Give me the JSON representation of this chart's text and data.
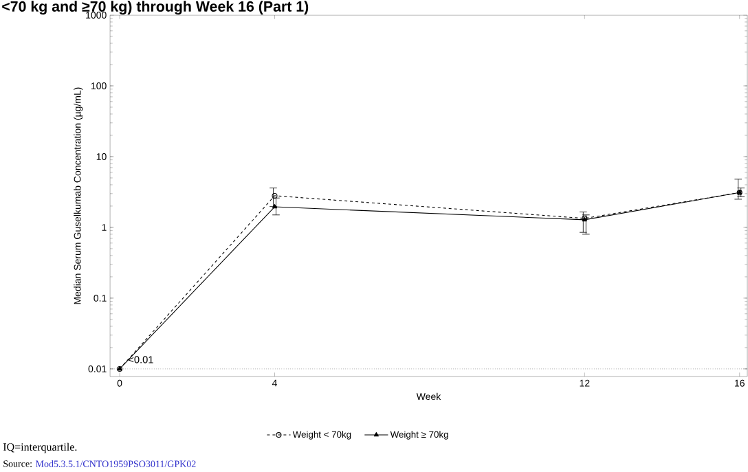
{
  "chart_data": {
    "type": "line",
    "title": "<70 kg and ≥70 kg) through Week 16 (Part 1)",
    "xlabel": "Week",
    "ylabel": "Median Serum Guselkumab Concentration (µg/mL)",
    "x": [
      0,
      4,
      12,
      16
    ],
    "log": "y",
    "xlim": [
      -0.25,
      16.2
    ],
    "xticks": [
      0,
      4,
      12,
      16
    ],
    "ylim": [
      0.0078,
      1000
    ],
    "yticks": [
      0.01,
      0.1,
      1,
      10,
      100,
      1000
    ],
    "series": [
      {
        "name": "Weight < 70kg",
        "color": "#000000",
        "marker": "circle",
        "line_style": "dashed",
        "values": [
          0.01,
          2.8,
          1.34,
          3.1
        ],
        "errors": [
          null,
          [
            1.97,
            3.6
          ],
          [
            0.85,
            1.65
          ],
          [
            2.5,
            4.8
          ]
        ]
      },
      {
        "name": "Weight ≥ 70kg",
        "color": "#000000",
        "marker": "triangle",
        "line_style": "solid",
        "values": [
          0.01,
          1.95,
          1.28,
          3.1
        ],
        "errors": [
          null,
          [
            1.5,
            2.6
          ],
          [
            0.8,
            1.5
          ],
          [
            2.7,
            3.6
          ]
        ]
      }
    ],
    "ref_lines": [
      {
        "axis": "y",
        "value": 0.01,
        "line_style": "dotted",
        "color": "#000000"
      }
    ],
    "annotations": [
      {
        "text": "<0.01",
        "x": 0,
        "y": 0.01
      },
      "IQ=interquartile.",
      "Source:",
      "Mod5.3.5.1/CNTO1959PSO3011/GPK02"
    ],
    "legend": "bottom",
    "grid": false
  }
}
